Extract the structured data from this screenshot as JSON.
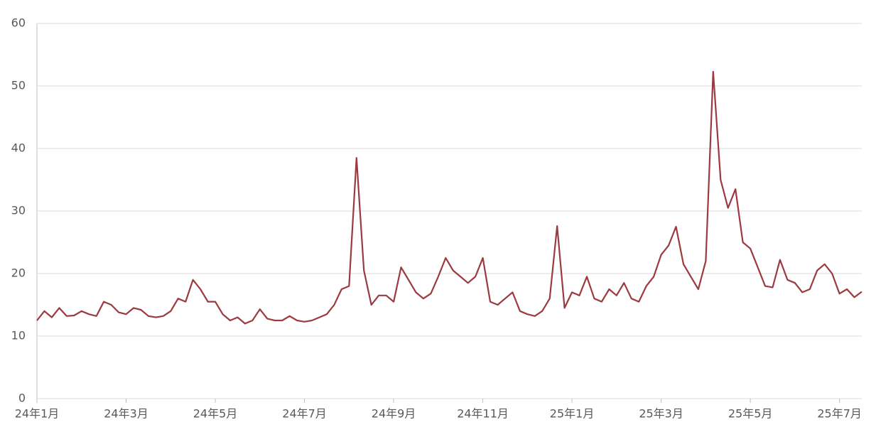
{
  "chart_data": {
    "type": "line",
    "categories": [
      "24年1月",
      null,
      null,
      null,
      null,
      null,
      null,
      null,
      null,
      null,
      null,
      null,
      "24年3月",
      null,
      null,
      null,
      null,
      null,
      null,
      null,
      null,
      null,
      null,
      null,
      "24年5月",
      null,
      null,
      null,
      null,
      null,
      null,
      null,
      null,
      null,
      null,
      null,
      "24年7月",
      null,
      null,
      null,
      null,
      null,
      null,
      null,
      null,
      null,
      null,
      null,
      "24年9月",
      null,
      null,
      null,
      null,
      null,
      null,
      null,
      null,
      null,
      null,
      null,
      "24年11月",
      null,
      null,
      null,
      null,
      null,
      null,
      null,
      null,
      null,
      null,
      null,
      "25年1月",
      null,
      null,
      null,
      null,
      null,
      null,
      null,
      null,
      null,
      null,
      null,
      "25年3月",
      null,
      null,
      null,
      null,
      null,
      null,
      null,
      null,
      null,
      null,
      null,
      "25年5月",
      null,
      null,
      null,
      null,
      null,
      null,
      null,
      null,
      null,
      null,
      null,
      "25年7月",
      null,
      null,
      null
    ],
    "series": [
      {
        "color": "#9b3a3f",
        "values": [
          12.5,
          14,
          13,
          14.5,
          13.2,
          13.3,
          14,
          13.5,
          13.2,
          15.5,
          15,
          13.8,
          13.5,
          14.5,
          14.2,
          13.2,
          13,
          13.2,
          14,
          16,
          15.5,
          19,
          17.5,
          15.5,
          15.5,
          13.5,
          12.5,
          13,
          12,
          12.5,
          14.3,
          12.8,
          12.5,
          12.5,
          13.2,
          12.5,
          12.3,
          12.5,
          13,
          13.5,
          15,
          17.5,
          18,
          38.5,
          20.5,
          15,
          16.5,
          16.5,
          15.5,
          21,
          19,
          17,
          16,
          16.8,
          19.5,
          22.5,
          20.5,
          19.5,
          18.5,
          19.5,
          22.5,
          15.5,
          15,
          16,
          17,
          14,
          13.5,
          13.2,
          14,
          16,
          27.6,
          14.5,
          17,
          16.5,
          19.5,
          16,
          15.5,
          17.5,
          16.5,
          18.5,
          16,
          15.5,
          18,
          19.5,
          23,
          24.5,
          27.5,
          21.5,
          19.5,
          17.5,
          22,
          52.3,
          35,
          30.5,
          33.5,
          25,
          24,
          21,
          18,
          17.8,
          22.2,
          19,
          18.5,
          17,
          17.5,
          20.5,
          21.5,
          20,
          16.8,
          17.5,
          16.2,
          17.1
        ]
      }
    ],
    "ylim": [
      0,
      60
    ],
    "yticks": [
      0,
      10,
      20,
      30,
      40,
      50,
      60
    ],
    "grid": true
  }
}
